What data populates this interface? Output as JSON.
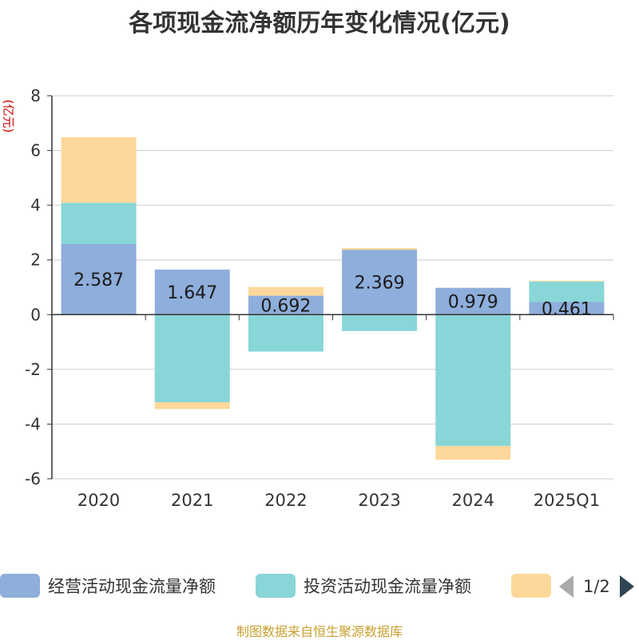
{
  "title": "各项现金流净额历年变化情况(亿元)",
  "source": "制图数据来自恒生聚源数据库",
  "legend_page": "1/2",
  "chart_data": {
    "type": "bar",
    "stacked": true,
    "categories": [
      "2020",
      "2021",
      "2022",
      "2023",
      "2024",
      "2025Q1"
    ],
    "ylabel": "(亿元)",
    "ylim": [
      -6,
      8
    ],
    "yticks": [
      8,
      6,
      4,
      2,
      0,
      -2,
      -4,
      -6
    ],
    "grid": true,
    "legend_position": "bottom",
    "series": [
      {
        "name": "经营活动现金流量净额",
        "color": "#8eaedb",
        "values": [
          2.587,
          1.647,
          0.692,
          2.369,
          0.979,
          0.461
        ],
        "show_labels": true
      },
      {
        "name": "投资活动现金流量净额",
        "color": "#88d6d8",
        "values": [
          1.5,
          -3.2,
          -1.35,
          -0.6,
          -4.8,
          0.75
        ],
        "show_labels": false
      },
      {
        "name": "",
        "color": "#fdd89a",
        "values": [
          2.4,
          -0.25,
          0.32,
          0.06,
          -0.5,
          0.03
        ],
        "show_labels": false
      }
    ]
  }
}
